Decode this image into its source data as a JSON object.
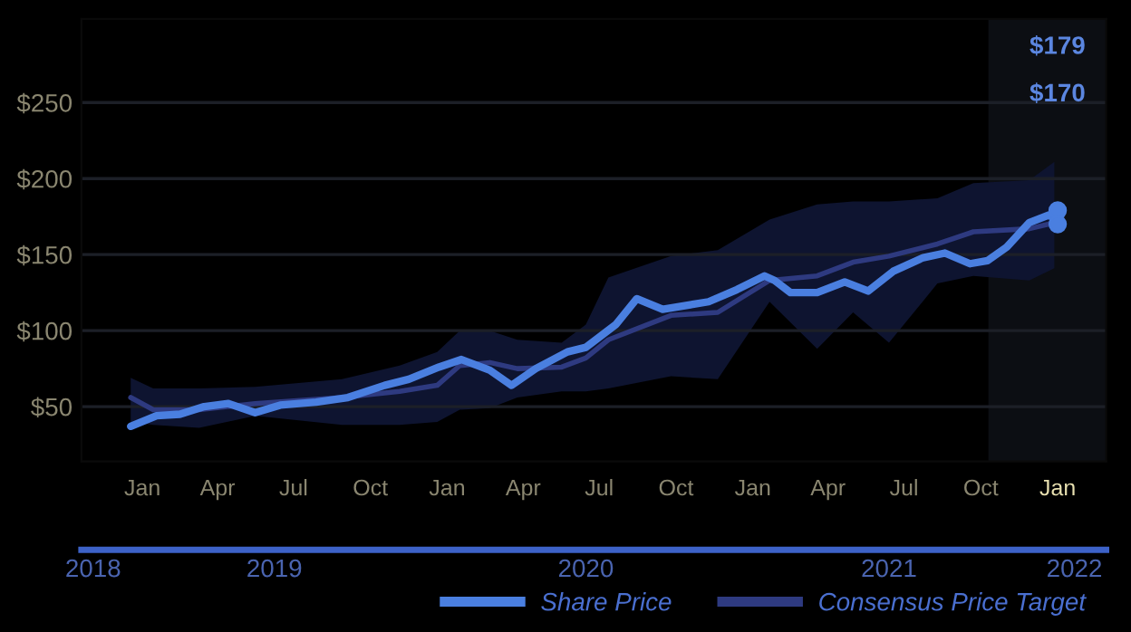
{
  "chart_data": {
    "type": "line",
    "series": [
      {
        "name": "Share Price",
        "color": "#4a7fe0",
        "x": [
          "2018-12-18",
          "2019-01-18",
          "2019-02-15",
          "2019-03-16",
          "2019-04-14",
          "2019-05-16",
          "2019-06-15",
          "2019-07-28",
          "2019-09-04",
          "2019-10-18",
          "2019-11-16",
          "2019-12-22",
          "2020-01-18",
          "2020-02-21",
          "2020-03-18",
          "2020-04-16",
          "2020-05-24",
          "2020-06-15",
          "2020-07-21",
          "2020-08-15",
          "2020-09-15",
          "2020-11-09",
          "2020-12-13",
          "2021-01-15",
          "2021-01-27",
          "2021-02-15",
          "2021-03-19",
          "2021-04-21",
          "2021-05-19",
          "2021-06-18",
          "2021-07-24",
          "2021-08-19",
          "2021-09-18",
          "2021-10-09",
          "2021-11-01",
          "2021-11-28",
          "2021-12-21",
          "2021-12-28"
        ],
        "values": [
          37,
          44,
          45,
          50,
          52,
          46,
          51,
          53,
          56,
          64,
          68,
          76,
          81,
          74,
          64,
          75,
          86,
          89,
          104,
          121,
          114,
          119,
          127,
          136,
          133,
          125,
          125,
          132,
          126,
          139,
          148,
          151,
          144,
          146,
          155,
          171,
          176,
          174
        ]
      },
      {
        "name": "Consensus Price Target",
        "color": "#2e3a80",
        "x": [
          "2018-12-18",
          "2019-01-14",
          "2019-03-10",
          "2019-05-16",
          "2019-08-28",
          "2019-11-05",
          "2019-12-20",
          "2020-01-16",
          "2020-02-21",
          "2020-03-25",
          "2020-05-17",
          "2020-06-15",
          "2020-07-12",
          "2020-09-25",
          "2020-11-20",
          "2021-01-21",
          "2021-03-19",
          "2021-05-01",
          "2021-06-13",
          "2021-08-10",
          "2021-09-22",
          "2021-11-28",
          "2021-12-28"
        ],
        "values": [
          56,
          48,
          48,
          52,
          56,
          60,
          64,
          77,
          79,
          75,
          76,
          82,
          94,
          110,
          112,
          133,
          136,
          145,
          149,
          157,
          165,
          167,
          171
        ],
        "lower": [
          40,
          38,
          36,
          44,
          38,
          38,
          40,
          48,
          49,
          56,
          60,
          60,
          62,
          70,
          68,
          119,
          88,
          112,
          92,
          131,
          136,
          133,
          141
        ],
        "upper": [
          69,
          62,
          62,
          63,
          68,
          77,
          86,
          100,
          100,
          94,
          92,
          104,
          135,
          149,
          153,
          173,
          183,
          185,
          185,
          187,
          197,
          199,
          211
        ]
      },
      {
        "type": "scatter",
        "marker": "circle",
        "color": "#4a7fe0",
        "x": [
          "2022-01-01",
          "2022-01-01"
        ],
        "values": [
          179,
          170
        ]
      }
    ],
    "xlim": [
      "2018-10-20",
      "2022-02-28"
    ],
    "xticks": [
      {
        "value": "2019-01-01",
        "label": "Jan"
      },
      {
        "value": "2019-04-01",
        "label": "Apr"
      },
      {
        "value": "2019-07-01",
        "label": "Jul"
      },
      {
        "value": "2019-10-01",
        "label": "Oct"
      },
      {
        "value": "2020-01-01",
        "label": "Jan"
      },
      {
        "value": "2020-04-01",
        "label": "Apr"
      },
      {
        "value": "2020-07-01",
        "label": "Jul"
      },
      {
        "value": "2020-10-01",
        "label": "Oct"
      },
      {
        "value": "2021-01-01",
        "label": "Jan"
      },
      {
        "value": "2021-04-01",
        "label": "Apr"
      },
      {
        "value": "2021-07-01",
        "label": "Jul"
      },
      {
        "value": "2021-10-01",
        "label": "Oct"
      },
      {
        "value": "2022-01-01",
        "label": "Jan"
      }
    ],
    "x2lim": [
      "2018-10-20",
      "2022-02-28"
    ],
    "x2ticks": [
      {
        "value": "2018-11-03",
        "label": "2018"
      },
      {
        "value": "2019-06-08",
        "label": "2019"
      },
      {
        "value": "2020-06-15",
        "label": "2020"
      },
      {
        "value": "2021-06-13",
        "label": "2021"
      },
      {
        "value": "2022-01-21",
        "label": "2022"
      }
    ],
    "ylim": [
      14,
      305
    ],
    "yticks": [
      {
        "value": 50,
        "label": "$50"
      },
      {
        "value": 100,
        "label": "$100"
      },
      {
        "value": 150,
        "label": "$150"
      },
      {
        "value": 200,
        "label": "$200"
      },
      {
        "value": 250,
        "label": "$250"
      }
    ],
    "bands": [
      {
        "axis": "x",
        "from": "2021-10-10",
        "to": "2022-02-28",
        "color": "#0c0e13"
      }
    ],
    "annotations": [
      "$179",
      "$170"
    ],
    "grid": "y",
    "legend": "bottom right",
    "marker": "none",
    "line_style": "solid"
  }
}
